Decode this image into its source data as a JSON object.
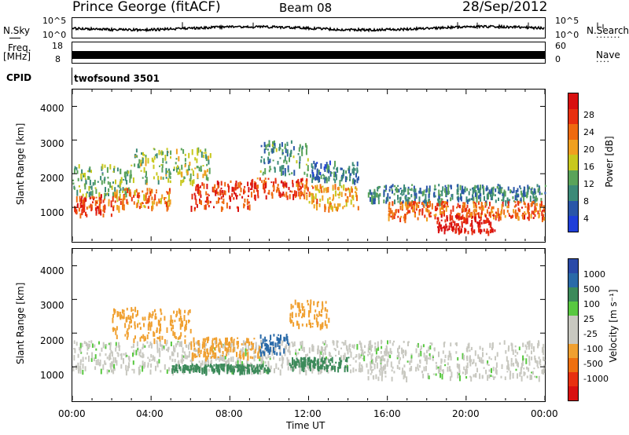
{
  "header": {
    "station": "Prince George (fitACF)",
    "beam": "Beam 08",
    "date": "28/Sep/2012"
  },
  "top_panels": {
    "nsky_label": "N.Sky",
    "nsearch_label": "N.Search",
    "noise_ticks": [
      "10^5",
      "10^0"
    ],
    "freq_label_line1": "Freq.",
    "freq_label_line2": "[MHz]",
    "freq_ticks": [
      "18",
      "8"
    ],
    "nave_label": "Nave",
    "nave_ticks": [
      "60",
      "0"
    ],
    "cpid_label": "CPID",
    "cpid_value": "twofsound 3501"
  },
  "colors": {
    "noise_line": "#000000",
    "power_scale": [
      "#1f3fd9",
      "#2a56a8",
      "#3c8a78",
      "#5aa35a",
      "#c8c81e",
      "#f0a020",
      "#ee6a10",
      "#e83010",
      "#d81010"
    ],
    "velocity_scale": [
      "#2a4aa8",
      "#2a6aa8",
      "#3c8a5a",
      "#58c840",
      "#c8c8c0",
      "#c8c8c0",
      "#f0a030",
      "#ee7010",
      "#e83010",
      "#d81010"
    ]
  },
  "chart_data": [
    {
      "type": "heatmap",
      "panel": "power",
      "ylabel": "Slant Range [km]",
      "xlim": [
        "00:00",
        "24:00"
      ],
      "ylim": [
        0,
        4500
      ],
      "yticks": [
        "1000",
        "2000",
        "3000",
        "4000"
      ],
      "colorbar_label": "Power [dB]",
      "colorbar_ticks": [
        "28",
        "24",
        "20",
        "16",
        "12",
        "8",
        "4"
      ],
      "colorbar_range": [
        0,
        32
      ],
      "bands": [
        {
          "t0": 0.0,
          "t1": 2.0,
          "r0": 800,
          "r1": 1400,
          "level": 26
        },
        {
          "t0": 0.0,
          "t1": 3.0,
          "r0": 1400,
          "r1": 2300,
          "level": 12
        },
        {
          "t0": 2.0,
          "t1": 5.0,
          "r0": 1000,
          "r1": 1600,
          "level": 22
        },
        {
          "t0": 3.0,
          "t1": 7.0,
          "r0": 1800,
          "r1": 2800,
          "level": 14
        },
        {
          "t0": 6.0,
          "t1": 9.0,
          "r0": 1000,
          "r1": 1800,
          "level": 27
        },
        {
          "t0": 9.0,
          "t1": 12.0,
          "r0": 1300,
          "r1": 1900,
          "level": 25
        },
        {
          "t0": 9.5,
          "t1": 12.0,
          "r0": 2000,
          "r1": 3000,
          "level": 10
        },
        {
          "t0": 12.0,
          "t1": 14.5,
          "r0": 1000,
          "r1": 1700,
          "level": 20
        },
        {
          "t0": 12.0,
          "t1": 14.5,
          "r0": 1800,
          "r1": 2400,
          "level": 8
        },
        {
          "t0": 15.0,
          "t1": 24.0,
          "r0": 1200,
          "r1": 1700,
          "level": 9
        },
        {
          "t0": 16.0,
          "t1": 24.0,
          "r0": 700,
          "r1": 1200,
          "level": 24
        },
        {
          "t0": 18.5,
          "t1": 21.5,
          "r0": 300,
          "r1": 800,
          "level": 30
        }
      ]
    },
    {
      "type": "heatmap",
      "panel": "velocity",
      "ylabel": "Slant Range [km]",
      "xlabel": "Time UT",
      "xlim": [
        "00:00",
        "24:00"
      ],
      "ylim": [
        0,
        4500
      ],
      "yticks": [
        "1000",
        "2000",
        "3000",
        "4000"
      ],
      "xticks": [
        "00:00",
        "04:00",
        "08:00",
        "12:00",
        "16:00",
        "20:00",
        "00:00"
      ],
      "colorbar_label": "Velocity [m s⁻¹]",
      "colorbar_ticks": [
        "1000",
        "500",
        "100",
        "25",
        "-25",
        "-100",
        "-500",
        "-1000"
      ],
      "bands": [
        {
          "t0": 0.0,
          "t1": 16.0,
          "r0": 900,
          "r1": 1800,
          "vel": 0
        },
        {
          "t0": 2.0,
          "t1": 6.0,
          "r0": 1800,
          "r1": 2800,
          "vel": -300
        },
        {
          "t0": 6.0,
          "t1": 9.5,
          "r0": 1300,
          "r1": 1900,
          "vel": -400
        },
        {
          "t0": 9.5,
          "t1": 11.0,
          "r0": 1400,
          "r1": 2000,
          "vel": 700
        },
        {
          "t0": 11.0,
          "t1": 14.0,
          "r0": 1000,
          "r1": 1300,
          "vel": 150
        },
        {
          "t0": 5.0,
          "t1": 10.0,
          "r0": 900,
          "r1": 1100,
          "vel": 150
        },
        {
          "t0": 15.0,
          "t1": 24.0,
          "r0": 700,
          "r1": 1800,
          "vel": 0
        },
        {
          "t0": 11.0,
          "t1": 13.0,
          "r0": 2200,
          "r1": 3000,
          "vel": -200
        }
      ]
    }
  ]
}
